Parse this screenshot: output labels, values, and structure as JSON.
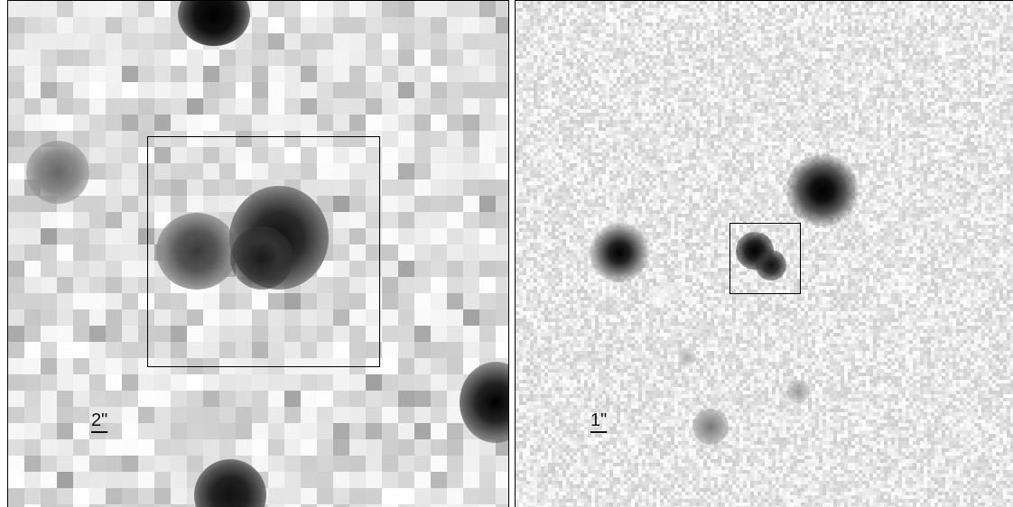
{
  "figure": {
    "left_panel": {
      "scale_bar_label": "2\""
    },
    "right_panel": {
      "scale_bar_label": "1\""
    }
  }
}
